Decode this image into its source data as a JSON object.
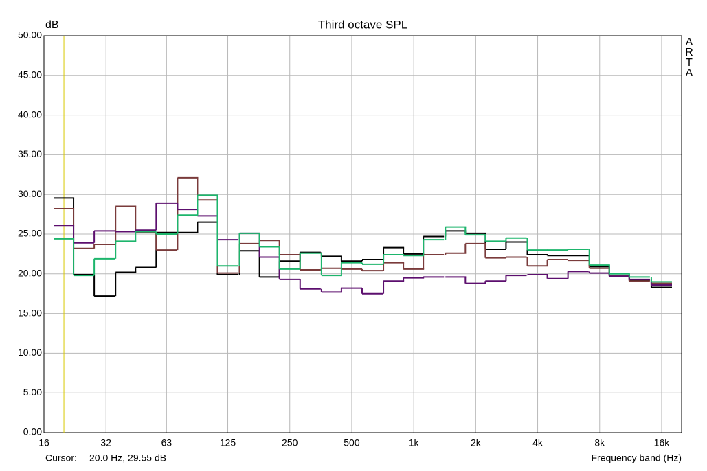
{
  "chart_data": {
    "type": "step",
    "title": "Third octave SPL",
    "y_label": "dB",
    "x_label": "Frequency band (Hz)",
    "watermark": "ARTA",
    "cursor": {
      "label": "Cursor:",
      "text": "20.0 Hz, 29.55 dB",
      "x": 20,
      "color": "#d8c800"
    },
    "x_scale": "log",
    "grid": true,
    "xlim": [
      16,
      20000
    ],
    "xticks": [
      16,
      32,
      63,
      125,
      250,
      500,
      {
        "value": 1000,
        "label": "1k"
      },
      {
        "value": 2000,
        "label": "2k"
      },
      {
        "value": 4000,
        "label": "4k"
      },
      {
        "value": 8000,
        "label": "8k"
      },
      {
        "value": 16000,
        "label": "16k"
      }
    ],
    "ylim": [
      0,
      50
    ],
    "yticks": [
      {
        "value": 0,
        "label": "0.00"
      },
      {
        "value": 5,
        "label": "5.00"
      },
      {
        "value": 10,
        "label": "10.00"
      },
      {
        "value": 15,
        "label": "15.00"
      },
      {
        "value": 20,
        "label": "20.00"
      },
      {
        "value": 25,
        "label": "25.00"
      },
      {
        "value": 30,
        "label": "30.00"
      },
      {
        "value": 35,
        "label": "35.00"
      },
      {
        "value": 40,
        "label": "40.00"
      },
      {
        "value": 45,
        "label": "45.00"
      },
      {
        "value": 50,
        "label": "50.00"
      }
    ],
    "x": [
      20,
      25,
      31.5,
      40,
      50,
      63,
      80,
      100,
      125,
      160,
      200,
      250,
      315,
      400,
      500,
      630,
      800,
      1000,
      1250,
      1600,
      2000,
      2500,
      3150,
      4000,
      5000,
      6300,
      8000,
      10000,
      12500,
      16000
    ],
    "series": [
      {
        "color": "#000000",
        "values": [
          29.55,
          19.9,
          17.2,
          20.2,
          20.8,
          25.2,
          25.2,
          26.5,
          19.9,
          22.9,
          19.6,
          21.6,
          22.7,
          22.2,
          21.6,
          21.8,
          23.3,
          22.5,
          24.7,
          25.4,
          25.1,
          23.1,
          24.0,
          22.4,
          22.3,
          22.3,
          20.9,
          19.8,
          19.2,
          18.3
        ]
      },
      {
        "color": "#7a3b3b",
        "values": [
          28.2,
          23.2,
          23.7,
          28.5,
          25.2,
          23.0,
          32.1,
          29.3,
          20.1,
          23.8,
          24.2,
          22.4,
          20.5,
          20.7,
          20.6,
          20.4,
          21.4,
          20.6,
          22.4,
          22.6,
          23.8,
          22.0,
          22.1,
          21.0,
          21.8,
          21.7,
          20.7,
          19.8,
          19.1,
          18.8
        ]
      },
      {
        "color": "#5c0f6e",
        "values": [
          26.1,
          23.9,
          25.4,
          25.3,
          25.5,
          28.9,
          28.1,
          27.3,
          24.3,
          25.1,
          22.1,
          19.3,
          18.1,
          17.7,
          18.2,
          17.5,
          19.1,
          19.5,
          19.6,
          19.6,
          18.8,
          19.1,
          19.8,
          19.9,
          19.4,
          20.3,
          20.1,
          19.7,
          19.3,
          18.6
        ]
      },
      {
        "color": "#1db56c",
        "values": [
          24.4,
          19.8,
          21.9,
          24.1,
          25.3,
          25.0,
          27.4,
          29.9,
          21.0,
          25.1,
          23.4,
          20.6,
          22.6,
          19.8,
          21.4,
          21.2,
          22.4,
          22.3,
          24.3,
          25.9,
          24.9,
          24.1,
          24.5,
          23.0,
          23.0,
          23.1,
          21.1,
          20.0,
          19.6,
          19.0
        ]
      }
    ]
  }
}
